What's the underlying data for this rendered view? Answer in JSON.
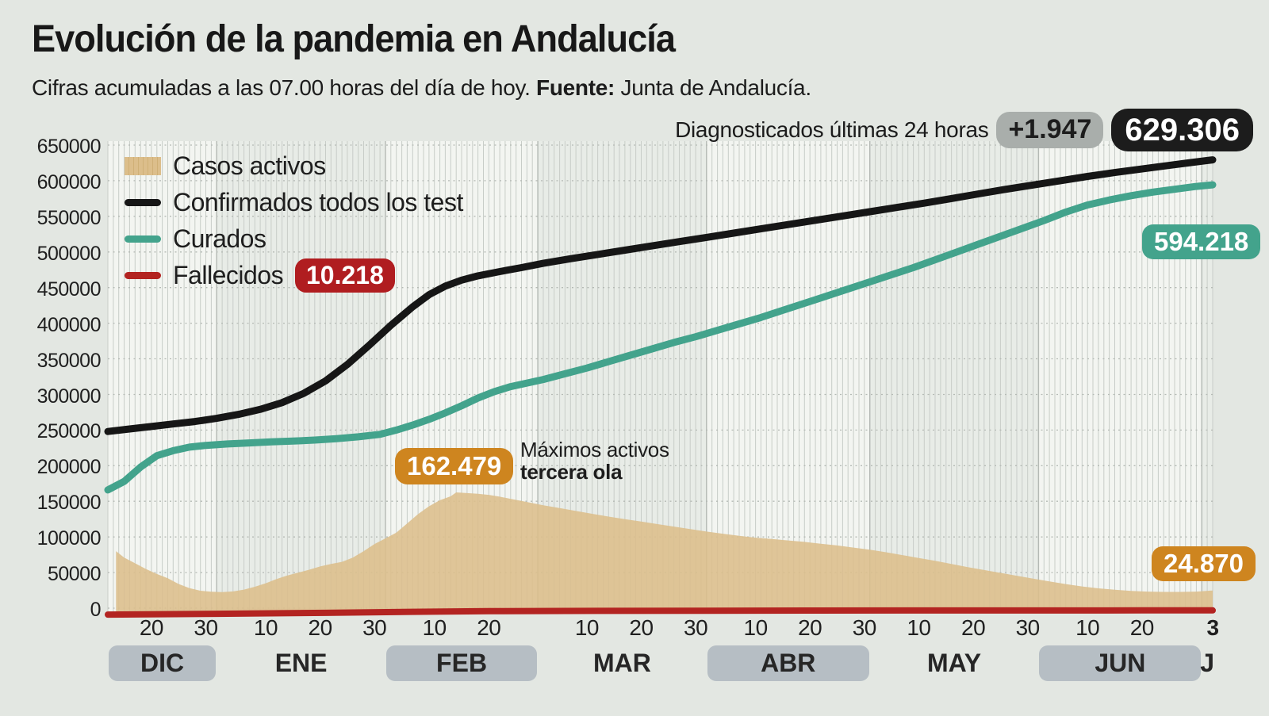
{
  "header": {
    "title": "Evolución de la pandemia en Andalucía",
    "subtitle_text": "Cifras acumuladas a las 07.00 horas del día de hoy. ",
    "subtitle_bold": "Fuente:",
    "subtitle_tail": " Junta de Andalucía.",
    "diag_label": "Diagnosticados últimas 24 horas",
    "diag_delta": "+1.947",
    "diag_total": "629.306"
  },
  "legend": {
    "items": [
      {
        "label": "Casos activos",
        "type": "area",
        "color": "#dcbe8b"
      },
      {
        "label": "Confirmados todos los test",
        "type": "line",
        "color": "#161616"
      },
      {
        "label": "Curados",
        "type": "line",
        "color": "#43a38c"
      },
      {
        "label": "Fallecidos",
        "type": "line",
        "color": "#b32421"
      }
    ]
  },
  "annotations": {
    "fallecidos_badge": "10.218",
    "max_badge": "162.479",
    "max_note_line1": "Máximos activos",
    "max_note_line2": "tercera ola",
    "curados_badge": "594.218",
    "activos_badge": "24.870"
  },
  "colors": {
    "page_bg": "#e3e7e2",
    "band_light": "#f3f5f1",
    "band_dark": "#e8ece7",
    "day_gridline": "#c8cdc8",
    "month_boundary": "#b4b9b4",
    "h_gridline": "#b5bab5",
    "area_fill": "#dcbe8b",
    "confirmados": "#161616",
    "curados": "#43a38c",
    "fallecidos": "#b32421",
    "badge_red": "#b01d20",
    "badge_orange": "#ce851f",
    "badge_gray": "#a9aeab",
    "badge_black": "#1c1c1c",
    "month_pill": "#b6bec4"
  },
  "chart_data": {
    "type": "area",
    "title": "Evolución de la pandemia en Andalucía",
    "x_range_days": 203,
    "x_start_label": "12 DIC",
    "x_end_label": "3 JUL",
    "ylim": [
      0,
      650000
    ],
    "y_step": 50000,
    "grid": true,
    "legend_position": "top-left",
    "y_ticks": [
      {
        "value": 0,
        "label": "0"
      },
      {
        "value": 50000,
        "label": "50000"
      },
      {
        "value": 100000,
        "label": "100000"
      },
      {
        "value": 150000,
        "label": "150000"
      },
      {
        "value": 200000,
        "label": "200000"
      },
      {
        "value": 250000,
        "label": "250000"
      },
      {
        "value": 300000,
        "label": "300000"
      },
      {
        "value": 350000,
        "label": "350000"
      },
      {
        "value": 400000,
        "label": "400000"
      },
      {
        "value": 450000,
        "label": "450000"
      },
      {
        "value": 500000,
        "label": "500000"
      },
      {
        "value": 550000,
        "label": "550000"
      },
      {
        "value": 600000,
        "label": "600000"
      },
      {
        "value": 650000,
        "label": "650000"
      }
    ],
    "x_ticks": [
      {
        "day": 8,
        "label": "20"
      },
      {
        "day": 18,
        "label": "30"
      },
      {
        "day": 29,
        "label": "10"
      },
      {
        "day": 39,
        "label": "20"
      },
      {
        "day": 49,
        "label": "30"
      },
      {
        "day": 60,
        "label": "10"
      },
      {
        "day": 70,
        "label": "20"
      },
      {
        "day": 88,
        "label": "10"
      },
      {
        "day": 98,
        "label": "20"
      },
      {
        "day": 108,
        "label": "30"
      },
      {
        "day": 119,
        "label": "10"
      },
      {
        "day": 129,
        "label": "20"
      },
      {
        "day": 139,
        "label": "30"
      },
      {
        "day": 149,
        "label": "10"
      },
      {
        "day": 159,
        "label": "20"
      },
      {
        "day": 169,
        "label": "30"
      },
      {
        "day": 180,
        "label": "10"
      },
      {
        "day": 190,
        "label": "20"
      },
      {
        "day": 203,
        "label": "3",
        "bold": true
      }
    ],
    "months": [
      {
        "label": "DIC",
        "start": 0,
        "end": 20,
        "pill": true
      },
      {
        "label": "ENE",
        "start": 20,
        "end": 51,
        "pill": false
      },
      {
        "label": "FEB",
        "start": 51,
        "end": 79,
        "pill": true
      },
      {
        "label": "MAR",
        "start": 79,
        "end": 110,
        "pill": false
      },
      {
        "label": "ABR",
        "start": 110,
        "end": 140,
        "pill": true
      },
      {
        "label": "MAY",
        "start": 140,
        "end": 171,
        "pill": false
      },
      {
        "label": "JUN",
        "start": 171,
        "end": 201,
        "pill": true
      },
      {
        "label": "J",
        "start": 201,
        "end": 203,
        "pill": false
      }
    ],
    "series": [
      {
        "name": "Casos activos",
        "type": "area",
        "color": "#dcbe8b",
        "max_value": 162479,
        "max_label": "162.479",
        "end_value": 24870,
        "end_label": "24.870",
        "points": [
          [
            1.5,
            80000
          ],
          [
            3,
            71000
          ],
          [
            5,
            63000
          ],
          [
            7,
            55000
          ],
          [
            9,
            48000
          ],
          [
            11,
            42000
          ],
          [
            13,
            34000
          ],
          [
            15,
            28000
          ],
          [
            17,
            24500
          ],
          [
            19,
            23000
          ],
          [
            21,
            22500
          ],
          [
            23,
            23500
          ],
          [
            25,
            26000
          ],
          [
            27,
            30000
          ],
          [
            29,
            35000
          ],
          [
            31,
            41000
          ],
          [
            33,
            46000
          ],
          [
            35,
            50000
          ],
          [
            37,
            54000
          ],
          [
            39,
            58500
          ],
          [
            41,
            62000
          ],
          [
            43,
            65000
          ],
          [
            45,
            71000
          ],
          [
            47,
            80000
          ],
          [
            49,
            90000
          ],
          [
            51,
            98000
          ],
          [
            53,
            106000
          ],
          [
            55,
            119000
          ],
          [
            57,
            132000
          ],
          [
            59,
            143000
          ],
          [
            61,
            151500
          ],
          [
            63,
            157000
          ],
          [
            64,
            162479
          ],
          [
            66,
            161500
          ],
          [
            68,
            160500
          ],
          [
            70,
            159000
          ],
          [
            72,
            156500
          ],
          [
            74,
            153500
          ],
          [
            76,
            150500
          ],
          [
            78,
            147500
          ],
          [
            80,
            144500
          ],
          [
            83,
            140500
          ],
          [
            86,
            136500
          ],
          [
            89,
            132500
          ],
          [
            92,
            128500
          ],
          [
            95,
            125000
          ],
          [
            98,
            121500
          ],
          [
            101,
            118000
          ],
          [
            104,
            114500
          ],
          [
            107,
            111000
          ],
          [
            110,
            107500
          ],
          [
            113,
            104500
          ],
          [
            116,
            101500
          ],
          [
            119,
            99000
          ],
          [
            122,
            97000
          ],
          [
            125,
            95000
          ],
          [
            128,
            93000
          ],
          [
            131,
            90500
          ],
          [
            134,
            88000
          ],
          [
            137,
            85000
          ],
          [
            140,
            82000
          ],
          [
            143,
            78500
          ],
          [
            146,
            74500
          ],
          [
            149,
            70500
          ],
          [
            152,
            66500
          ],
          [
            155,
            62000
          ],
          [
            158,
            57500
          ],
          [
            161,
            53500
          ],
          [
            164,
            49500
          ],
          [
            167,
            45500
          ],
          [
            170,
            41500
          ],
          [
            173,
            37500
          ],
          [
            176,
            33800
          ],
          [
            179,
            30500
          ],
          [
            182,
            27800
          ],
          [
            185,
            25800
          ],
          [
            188,
            24300
          ],
          [
            191,
            23300
          ],
          [
            194,
            22800
          ],
          [
            197,
            22800
          ],
          [
            200,
            23300
          ],
          [
            203,
            24870
          ]
        ]
      },
      {
        "name": "Confirmados todos los test",
        "type": "line",
        "color": "#161616",
        "end_value": 629306,
        "end_label": "629.306",
        "delta_label": "+1.947",
        "points": [
          [
            0,
            248000
          ],
          [
            4,
            251500
          ],
          [
            8,
            255000
          ],
          [
            12,
            258500
          ],
          [
            16,
            262000
          ],
          [
            20,
            266500
          ],
          [
            24,
            272000
          ],
          [
            28,
            279000
          ],
          [
            32,
            288500
          ],
          [
            36,
            301500
          ],
          [
            40,
            319000
          ],
          [
            44,
            342000
          ],
          [
            48,
            369000
          ],
          [
            52,
            397000
          ],
          [
            56,
            423000
          ],
          [
            59,
            440000
          ],
          [
            62,
            452000
          ],
          [
            65,
            460500
          ],
          [
            68,
            466500
          ],
          [
            72,
            472500
          ],
          [
            76,
            478000
          ],
          [
            80,
            484000
          ],
          [
            85,
            490500
          ],
          [
            90,
            496500
          ],
          [
            95,
            502500
          ],
          [
            100,
            508500
          ],
          [
            105,
            514500
          ],
          [
            110,
            520500
          ],
          [
            115,
            526500
          ],
          [
            120,
            532500
          ],
          [
            125,
            538500
          ],
          [
            130,
            544500
          ],
          [
            135,
            550500
          ],
          [
            140,
            556500
          ],
          [
            145,
            562500
          ],
          [
            150,
            568500
          ],
          [
            155,
            575000
          ],
          [
            160,
            581500
          ],
          [
            165,
            588000
          ],
          [
            170,
            594000
          ],
          [
            175,
            600000
          ],
          [
            180,
            606000
          ],
          [
            185,
            611500
          ],
          [
            190,
            616500
          ],
          [
            195,
            621500
          ],
          [
            199,
            625500
          ],
          [
            203,
            629306
          ]
        ]
      },
      {
        "name": "Curados",
        "type": "line",
        "color": "#43a38c",
        "end_value": 594218,
        "end_label": "594.218",
        "points": [
          [
            0,
            166000
          ],
          [
            3,
            178000
          ],
          [
            6,
            198000
          ],
          [
            9,
            214000
          ],
          [
            12,
            221000
          ],
          [
            15,
            226000
          ],
          [
            18,
            228500
          ],
          [
            22,
            230500
          ],
          [
            26,
            232000
          ],
          [
            30,
            233500
          ],
          [
            34,
            234500
          ],
          [
            38,
            236000
          ],
          [
            42,
            238000
          ],
          [
            46,
            240500
          ],
          [
            50,
            244000
          ],
          [
            53,
            250000
          ],
          [
            56,
            257000
          ],
          [
            59,
            265000
          ],
          [
            62,
            274000
          ],
          [
            65,
            284000
          ],
          [
            68,
            295000
          ],
          [
            71,
            304000
          ],
          [
            74,
            311000
          ],
          [
            77,
            316000
          ],
          [
            80,
            321000
          ],
          [
            84,
            329000
          ],
          [
            88,
            337000
          ],
          [
            92,
            346000
          ],
          [
            96,
            355000
          ],
          [
            100,
            364000
          ],
          [
            104,
            373000
          ],
          [
            108,
            381000
          ],
          [
            112,
            390000
          ],
          [
            116,
            399000
          ],
          [
            120,
            408000
          ],
          [
            124,
            418000
          ],
          [
            128,
            428000
          ],
          [
            132,
            438000
          ],
          [
            136,
            448000
          ],
          [
            140,
            458000
          ],
          [
            144,
            468000
          ],
          [
            148,
            478000
          ],
          [
            152,
            489000
          ],
          [
            156,
            500000
          ],
          [
            160,
            511000
          ],
          [
            164,
            522000
          ],
          [
            168,
            533000
          ],
          [
            172,
            544000
          ],
          [
            176,
            556000
          ],
          [
            180,
            566000
          ],
          [
            184,
            573000
          ],
          [
            188,
            579000
          ],
          [
            192,
            584000
          ],
          [
            196,
            588000
          ],
          [
            200,
            592000
          ],
          [
            203,
            594218
          ]
        ]
      },
      {
        "name": "Fallecidos",
        "type": "line",
        "color": "#b32421",
        "end_value": 10218,
        "end_label": "10.218",
        "points": [
          [
            0,
            4300
          ],
          [
            20,
            5400
          ],
          [
            40,
            6800
          ],
          [
            56,
            8200
          ],
          [
            70,
            9100
          ],
          [
            90,
            9600
          ],
          [
            110,
            9850
          ],
          [
            130,
            10000
          ],
          [
            150,
            10100
          ],
          [
            170,
            10170
          ],
          [
            190,
            10205
          ],
          [
            203,
            10218
          ]
        ]
      }
    ]
  }
}
